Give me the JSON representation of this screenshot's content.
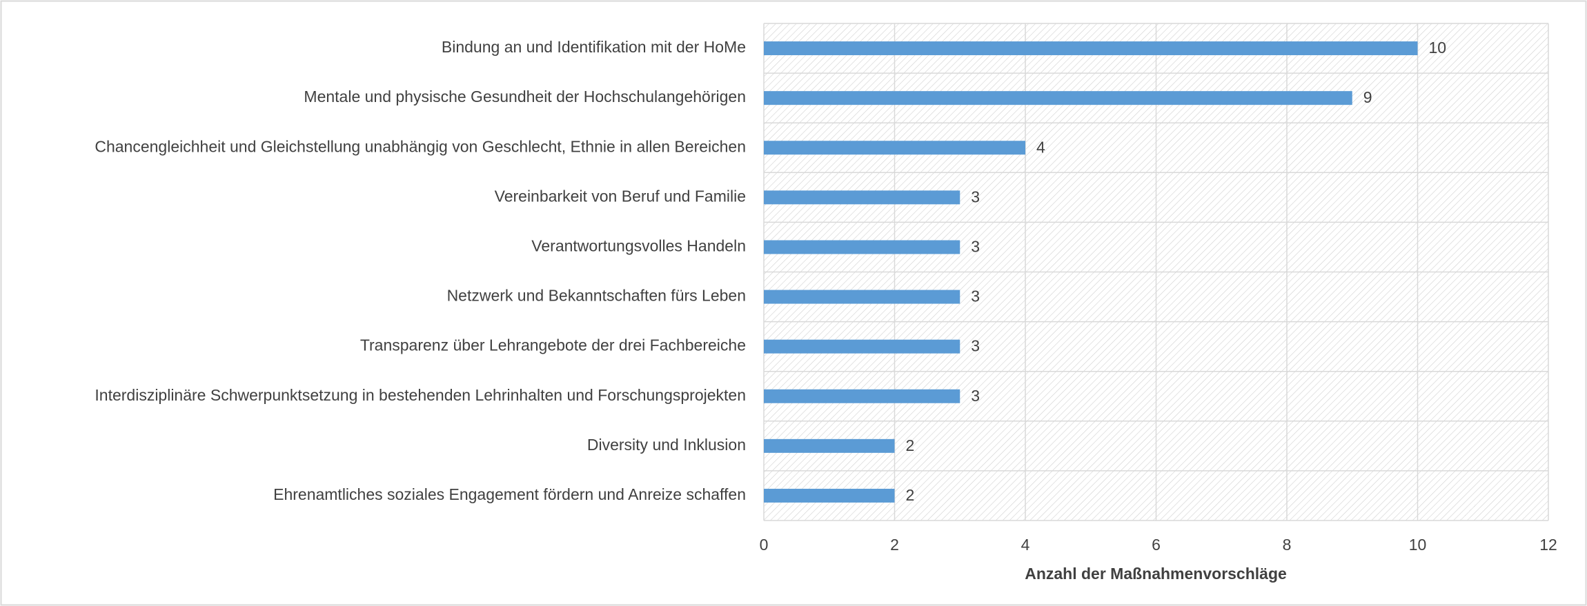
{
  "chart_data": {
    "type": "bar",
    "orientation": "horizontal",
    "categories": [
      "Bindung an und Identifikation mit der HoMe",
      "Mentale und physische Gesundheit der Hochschulangehörigen",
      "Chancengleichheit und Gleichstellung unabhängig von Geschlecht, Ethnie in allen Bereichen",
      "Vereinbarkeit von Beruf und Familie",
      "Verantwortungsvolles Handeln",
      "Netzwerk und Bekanntschaften fürs Leben",
      "Transparenz über Lehrangebote der drei Fachbereiche",
      "Interdisziplinäre Schwerpunktsetzung in bestehenden Lehrinhalten und Forschungsprojekten",
      "Diversity und Inklusion",
      "Ehrenamtliches soziales Engagement fördern und Anreize schaffen"
    ],
    "values": [
      10,
      9,
      4,
      3,
      3,
      3,
      3,
      3,
      2,
      2
    ],
    "color": "#5b9bd5",
    "x_label": "Anzahl der Maßnahmenvorschläge",
    "xlim": [
      0,
      12
    ],
    "xticks": [
      0,
      2,
      4,
      6,
      8,
      10,
      12
    ],
    "grid": true
  }
}
